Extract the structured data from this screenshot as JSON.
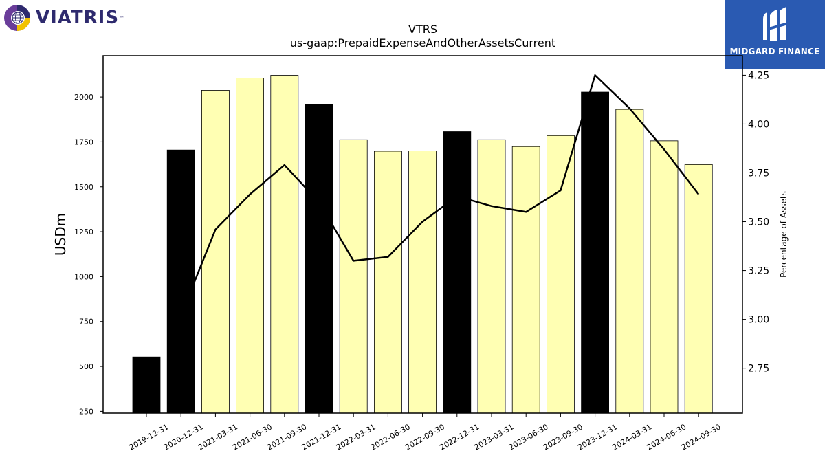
{
  "branding": {
    "left_logo_text": "VIATRIS",
    "left_logo_tm": "™",
    "right_logo_text": "MIDGARD FINANCE",
    "colors": {
      "right_logo_bg": "#2a5ab2",
      "left_logo_text": "#2e2a6e"
    }
  },
  "chart_data": {
    "type": "bar",
    "title": "VTRS",
    "subtitle": "us-gaap:PrepaidExpenseAndOtherAssetsCurrent",
    "ylabel": "USDm",
    "y2label": "Percentage of Assets",
    "ylim": [
      240,
      2230
    ],
    "y2lim": [
      2.52,
      4.35
    ],
    "yticks": [
      250,
      500,
      750,
      1000,
      1250,
      1500,
      1750,
      2000
    ],
    "y2ticks": [
      "2.75",
      "3.00",
      "3.25",
      "3.50",
      "3.75",
      "4.00",
      "4.25"
    ],
    "categories": [
      "2019-12-31",
      "2020-12-31",
      "2021-03-31",
      "2021-06-30",
      "2021-09-30",
      "2021-12-31",
      "2022-03-31",
      "2022-06-30",
      "2022-09-30",
      "2022-12-31",
      "2023-03-31",
      "2023-06-30",
      "2023-09-30",
      "2023-12-31",
      "2024-03-31",
      "2024-06-30",
      "2024-09-30"
    ],
    "values": [
      553,
      1705,
      2037,
      2106,
      2121,
      1958,
      1762,
      1698,
      1700,
      1807,
      1762,
      1724,
      1785,
      2027,
      1931,
      1756,
      1624
    ],
    "annual": [
      true,
      true,
      false,
      false,
      false,
      true,
      false,
      false,
      false,
      true,
      false,
      false,
      false,
      true,
      false,
      false,
      false
    ],
    "line_values": [
      null,
      3.02,
      3.46,
      3.64,
      3.79,
      3.6,
      3.3,
      3.32,
      3.5,
      3.63,
      3.58,
      3.55,
      3.66,
      4.25,
      4.08,
      3.87,
      3.64
    ],
    "colors": {
      "annual_bar": "#000000",
      "quarter_bar": "#ffffb3",
      "line": "#000000"
    },
    "grid": false,
    "legend": "none"
  }
}
